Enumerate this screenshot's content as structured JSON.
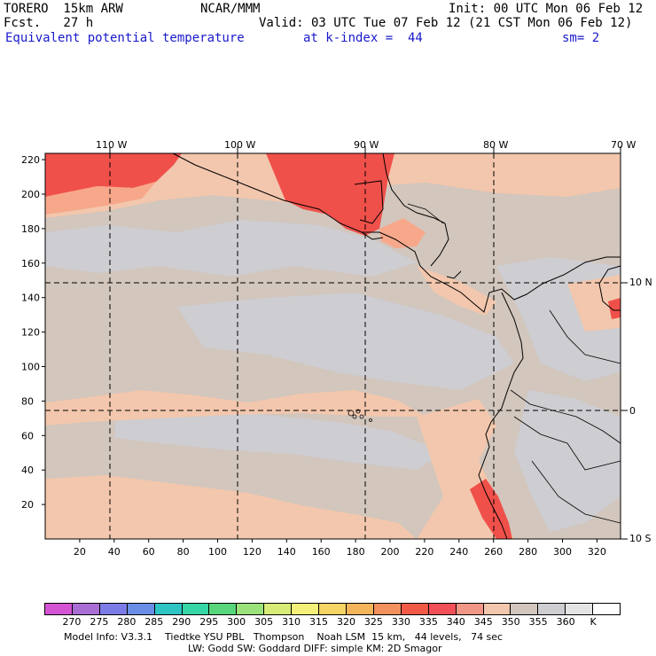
{
  "header": {
    "model": "TORERO  15km ARW",
    "org": "NCAR/MMM",
    "init": "Init: 00 UTC Mon 06 Feb 12",
    "fcst": "Fcst.   27 h",
    "valid": "Valid: 03 UTC Tue 07 Feb 12 (21 CST Mon 06 Feb 12)",
    "field": "Equivalent potential temperature",
    "level": "at k-index =  44",
    "smoothing": "sm= 2"
  },
  "map": {
    "top_lon_labels": [
      "110 W",
      "100 W",
      "90 W",
      "80 W",
      "70 W"
    ],
    "right_lat_labels": [
      "10 N",
      "0",
      "10 S"
    ],
    "left_grid_labels": [
      "220",
      "200",
      "180",
      "160",
      "140",
      "120",
      "100",
      "80",
      "60",
      "40",
      "20"
    ],
    "bottom_grid_labels": [
      "20",
      "40",
      "60",
      "80",
      "100",
      "120",
      "140",
      "160",
      "180",
      "200",
      "220",
      "240",
      "260",
      "280",
      "300",
      "320"
    ],
    "colors": {
      "hot": "#f0504a",
      "warm": "#f7a88b",
      "mild": "#f2c7ad",
      "neutral": "#d2c6bd",
      "cool": "#cdcdd2",
      "coolest": "#f3f3f3"
    }
  },
  "colorbar": {
    "colors": [
      "#d454d4",
      "#a86ed4",
      "#7c7ce8",
      "#6a8ee6",
      "#2ec4c4",
      "#36d6a6",
      "#58d67c",
      "#9ce27a",
      "#d6ec76",
      "#f4f07a",
      "#f6d466",
      "#f4b45a",
      "#f2905e",
      "#f05a46",
      "#f25058",
      "#f09686",
      "#f2c7ad",
      "#d2c6bd",
      "#cdcdd2",
      "#e4e4e4",
      "#ffffff"
    ],
    "labels": [
      "270",
      "275",
      "280",
      "285",
      "290",
      "295",
      "300",
      "305",
      "310",
      "315",
      "320",
      "325",
      "330",
      "335",
      "340",
      "345",
      "350",
      "355",
      "360",
      "K"
    ]
  },
  "footer": {
    "line1": "Model Info: V3.3.1    Tiedtke YSU PBL   Thompson    Noah LSM  15 km,   44 levels,   74 sec",
    "line2": "LW: Godd SW: Goddard DIFF: simple KM: 2D Smagor"
  }
}
